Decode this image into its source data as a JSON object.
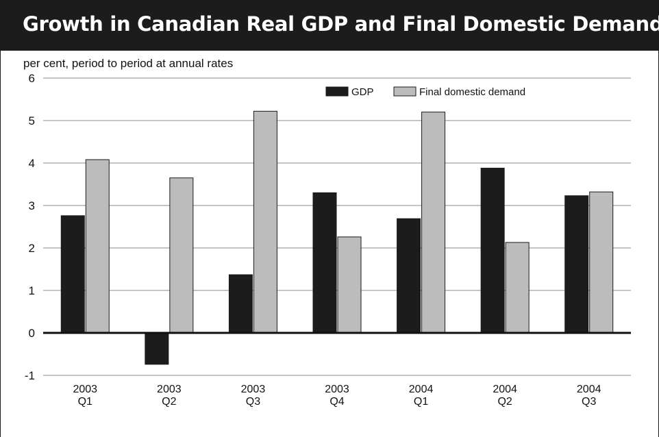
{
  "title": "Growth in Canadian Real GDP and Final Domestic Demand",
  "chart_data": {
    "type": "bar",
    "ylabel": "per cent, period to period at annual rates",
    "xlabel": "",
    "ylim": [
      -1,
      6
    ],
    "yticks": [
      "6",
      "5",
      "4",
      "3",
      "2",
      "1",
      "0",
      "-1"
    ],
    "grid": true,
    "legend_position": "top-right",
    "categories": [
      [
        "2003",
        "Q1"
      ],
      [
        "2003",
        "Q2"
      ],
      [
        "2003",
        "Q3"
      ],
      [
        "2003",
        "Q4"
      ],
      [
        "2004",
        "Q1"
      ],
      [
        "2004",
        "Q2"
      ],
      [
        "2004",
        "Q3"
      ]
    ],
    "series": [
      {
        "name": "GDP",
        "color": "#1c1c1c",
        "values": [
          2.76,
          -0.74,
          1.37,
          3.3,
          2.69,
          3.88,
          3.23
        ]
      },
      {
        "name": "Final domestic demand",
        "color": "#bcbcbc",
        "values": [
          4.08,
          3.65,
          5.22,
          2.26,
          5.2,
          2.13,
          3.32
        ]
      }
    ]
  }
}
